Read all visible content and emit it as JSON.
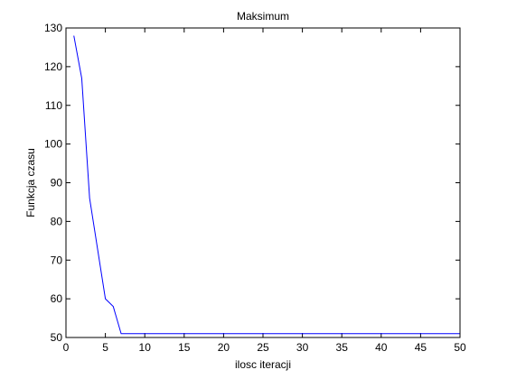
{
  "chart_data": {
    "type": "line",
    "title": "Maksimum",
    "xlabel": "ilosc iteracji",
    "ylabel": "Funkcja czasu",
    "xlim": [
      0,
      50
    ],
    "ylim": [
      50,
      130
    ],
    "xticks": [
      0,
      5,
      10,
      15,
      20,
      25,
      30,
      35,
      40,
      45,
      50
    ],
    "yticks": [
      50,
      60,
      70,
      80,
      90,
      100,
      110,
      120,
      130
    ],
    "grid": false,
    "line_color": "#0000ff",
    "series": [
      {
        "x": [
          1,
          2,
          3,
          4,
          5,
          6,
          7,
          8,
          9,
          10,
          11,
          12,
          13,
          14,
          15,
          16,
          17,
          18,
          19,
          20,
          21,
          22,
          23,
          24,
          25,
          26,
          27,
          28,
          29,
          30,
          31,
          32,
          33,
          34,
          35,
          36,
          37,
          38,
          39,
          40,
          41,
          42,
          43,
          44,
          45,
          46,
          47,
          48,
          49,
          50
        ],
        "values": [
          128,
          117,
          86,
          73,
          60,
          58,
          51,
          51,
          51,
          51,
          51,
          51,
          51,
          51,
          51,
          51,
          51,
          51,
          51,
          51,
          51,
          51,
          51,
          51,
          51,
          51,
          51,
          51,
          51,
          51,
          51,
          51,
          51,
          51,
          51,
          51,
          51,
          51,
          51,
          51,
          51,
          51,
          51,
          51,
          51,
          51,
          51,
          51,
          51,
          51
        ]
      }
    ]
  }
}
